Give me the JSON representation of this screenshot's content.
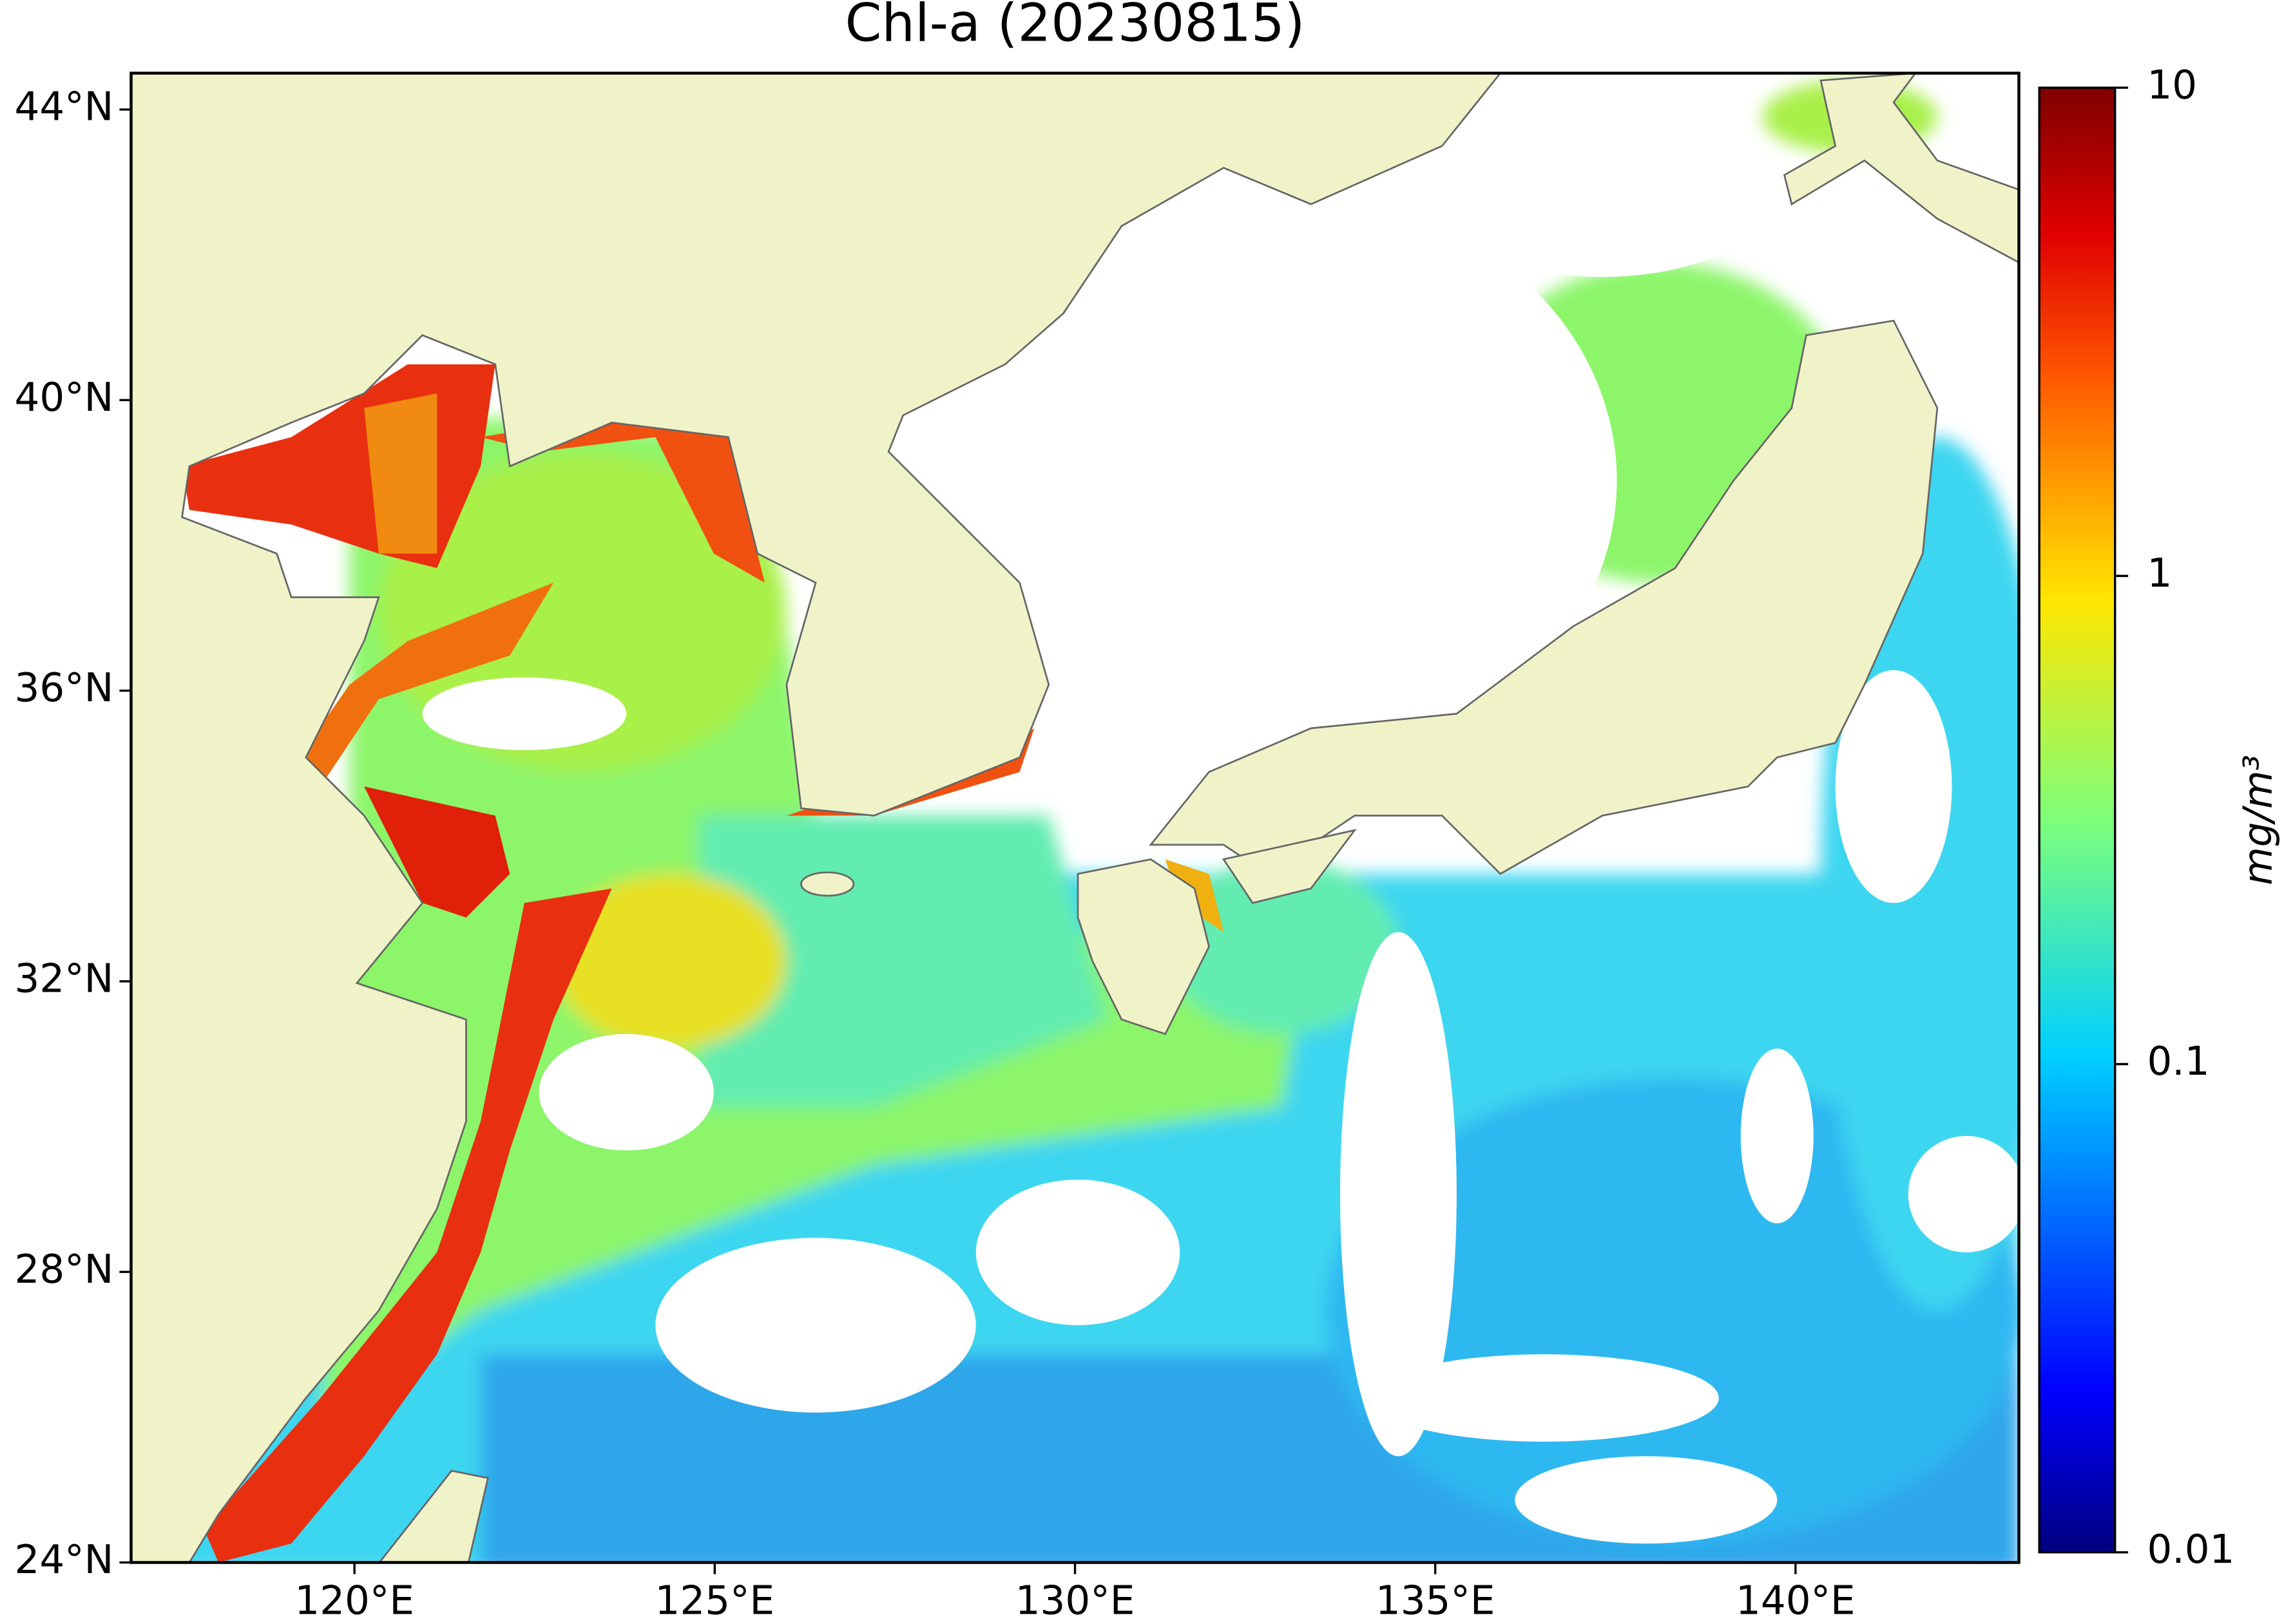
{
  "title": "Chl-a (20230815)",
  "map": {
    "xlim": [
      116.9,
      143.1
    ],
    "ylim": [
      24,
      44.5
    ],
    "xticks": [
      {
        "value": 120,
        "label": "120°E"
      },
      {
        "value": 125,
        "label": "125°E"
      },
      {
        "value": 130,
        "label": "130°E"
      },
      {
        "value": 135,
        "label": "135°E"
      },
      {
        "value": 140,
        "label": "140°E"
      }
    ],
    "yticks": [
      {
        "value": 24,
        "label": "24°N"
      },
      {
        "value": 28,
        "label": "28°N"
      },
      {
        "value": 32,
        "label": "32°N"
      },
      {
        "value": 36,
        "label": "36°N"
      },
      {
        "value": 40,
        "label": "40°N"
      },
      {
        "value": 44,
        "label": "44°N"
      }
    ]
  },
  "colorbar": {
    "label": "mg/m³",
    "clim": [
      0.01,
      10
    ],
    "scale": "log",
    "ticks": [
      0.01,
      0.1,
      1,
      10
    ]
  }
}
